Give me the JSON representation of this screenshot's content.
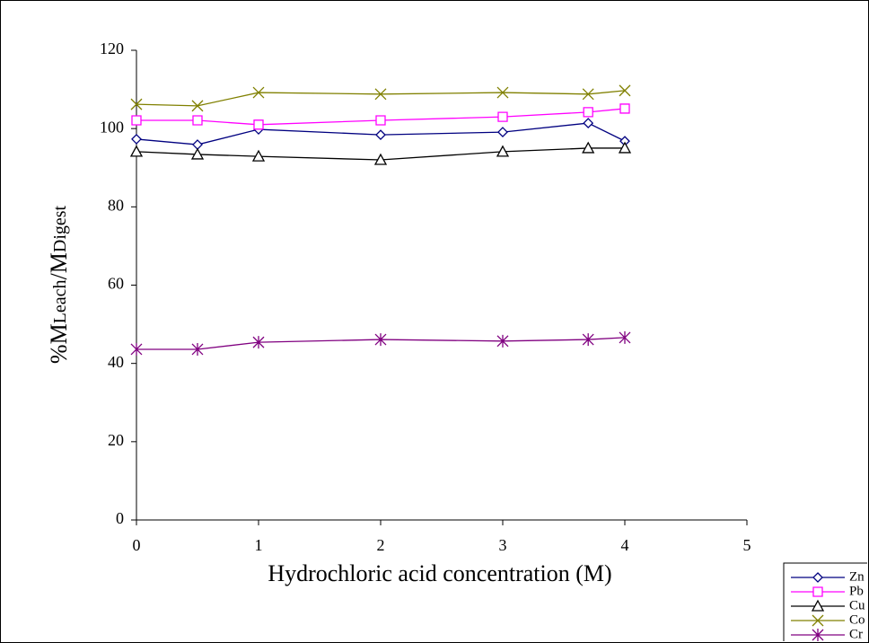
{
  "chart_data": {
    "type": "line",
    "xlabel": "Hydrochloric acid concentration (M)",
    "ylabel": [
      "%M",
      "Leach",
      "/M",
      "Digest"
    ],
    "x": [
      0,
      0.5,
      1,
      2,
      3,
      3.7,
      4
    ],
    "xlim": [
      0,
      5
    ],
    "xticks": [
      0,
      1,
      2,
      3,
      4,
      5
    ],
    "ylim": [
      0,
      120
    ],
    "yticks": [
      0,
      20,
      40,
      60,
      80,
      100,
      120
    ],
    "grid": false,
    "legend": "bottom-right",
    "series": [
      {
        "name": "Zn",
        "color": "#000080",
        "marker": "diamond",
        "values": [
          97.3,
          95.9,
          99.8,
          98.4,
          99.1,
          101.4,
          96.8
        ]
      },
      {
        "name": "Pb",
        "color": "#ff00ff",
        "marker": "square",
        "values": [
          102.1,
          102.1,
          101,
          102.1,
          103,
          104.2,
          105.1
        ]
      },
      {
        "name": "Cu",
        "color": "#000000",
        "marker": "triangle",
        "values": [
          94.1,
          93.4,
          92.9,
          92,
          94.1,
          95,
          95
        ]
      },
      {
        "name": "Co",
        "color": "#808000",
        "marker": "x",
        "values": [
          106.2,
          105.8,
          109.2,
          108.8,
          109.2,
          108.8,
          109.7
        ]
      },
      {
        "name": "Cr",
        "color": "#800080",
        "marker": "star",
        "values": [
          43.6,
          43.6,
          45.4,
          46.1,
          45.7,
          46.1,
          46.6
        ]
      }
    ]
  }
}
